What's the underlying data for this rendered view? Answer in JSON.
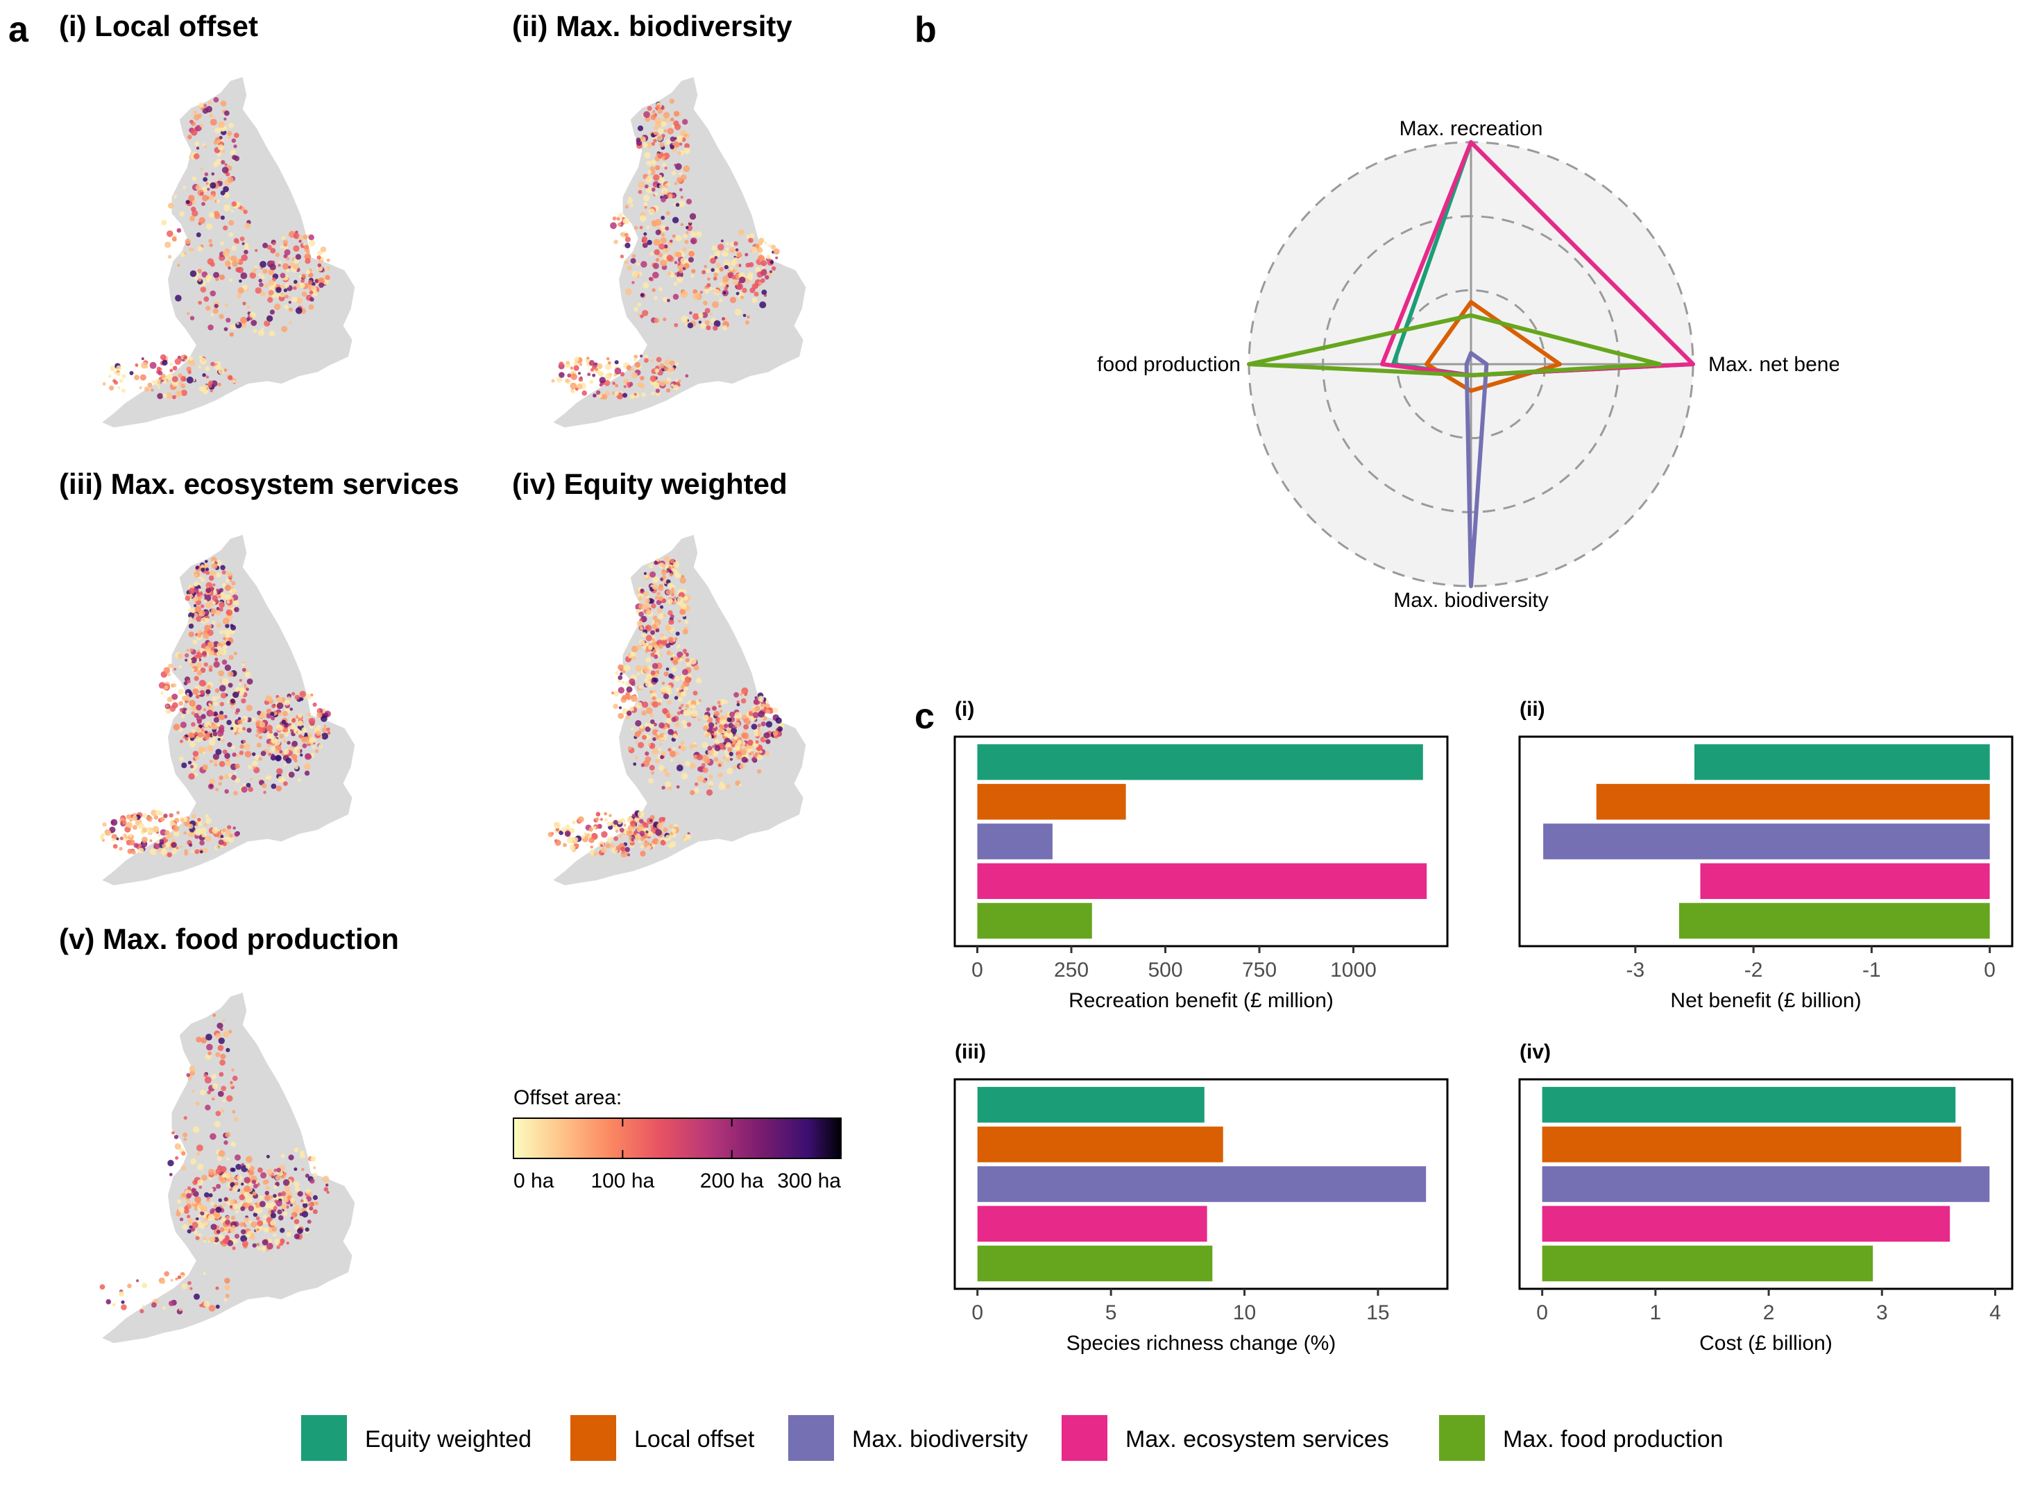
{
  "panel_letters": {
    "a": "a",
    "b": "b",
    "c": "c"
  },
  "maps": {
    "titles": [
      "(i) Local offset",
      "(ii) Max. biodiversity",
      "(iii) Max. ecosystem services",
      "(iv) Equity weighted",
      "(v) Max. food production"
    ],
    "colorbar": {
      "title": "Offset area:",
      "ticks": [
        "0 ha",
        "100 ha",
        "200 ha",
        "300 ha"
      ],
      "range": [
        0,
        300
      ]
    }
  },
  "colors": {
    "Equity weighted": "#1b9e77",
    "Local offset": "#d95f02",
    "Max. biodiversity": "#7570b3",
    "Max. ecosystem services": "#e7298a",
    "Max. food production": "#66a61e",
    "map_base": "#d9d9d9",
    "radar_bg": "#f2f2f2"
  },
  "chart_data": [
    {
      "type": "radar",
      "axes": [
        "Max. recreation",
        "Max. net benefit",
        "Max. biodiversity",
        "Max. food production"
      ],
      "series": [
        {
          "name": "Equity weighted",
          "values": [
            1.0,
            1.0,
            0.05,
            0.35
          ]
        },
        {
          "name": "Local offset",
          "values": [
            0.28,
            0.4,
            0.12,
            0.2
          ]
        },
        {
          "name": "Max. biodiversity",
          "values": [
            0.05,
            0.07,
            1.0,
            0.02
          ]
        },
        {
          "name": "Max. ecosystem services",
          "values": [
            1.0,
            1.0,
            0.05,
            0.4
          ]
        },
        {
          "name": "Max. food production",
          "values": [
            0.22,
            0.85,
            0.05,
            1.0
          ]
        }
      ],
      "rlim": [
        0,
        1
      ],
      "grid": "dashed circles"
    },
    {
      "type": "bar",
      "subtitle": "(i)",
      "orientation": "horizontal",
      "categories": [
        "Equity weighted",
        "Local offset",
        "Max. biodiversity",
        "Max. ecosystem services",
        "Max. food production"
      ],
      "values": [
        1185,
        395,
        200,
        1195,
        305
      ],
      "xlabel": "Recreation benefit (£ million)",
      "xlim": [
        -60,
        1250
      ],
      "xticks": [
        0,
        250,
        500,
        750,
        1000
      ]
    },
    {
      "type": "bar",
      "subtitle": "(ii)",
      "orientation": "horizontal",
      "categories": [
        "Equity weighted",
        "Local offset",
        "Max. biodiversity",
        "Max. ecosystem services",
        "Max. food production"
      ],
      "values": [
        -2.5,
        -3.33,
        -3.78,
        -2.45,
        -2.63
      ],
      "xlabel": "Net benefit (£ billion)",
      "xlim": [
        -3.98,
        0.19
      ],
      "xticks": [
        -3,
        -2,
        -1,
        0
      ]
    },
    {
      "type": "bar",
      "subtitle": "(iii)",
      "orientation": "horizontal",
      "categories": [
        "Equity weighted",
        "Local offset",
        "Max. biodiversity",
        "Max. ecosystem services",
        "Max. food production"
      ],
      "values": [
        8.5,
        9.2,
        16.8,
        8.6,
        8.8
      ],
      "xlabel": "Species richness change (%)",
      "xlim": [
        -0.85,
        17.6
      ],
      "xticks": [
        0,
        5,
        10,
        15
      ]
    },
    {
      "type": "bar",
      "subtitle": "(iv)",
      "orientation": "horizontal",
      "categories": [
        "Equity weighted",
        "Local offset",
        "Max. biodiversity",
        "Max. ecosystem services",
        "Max. food production"
      ],
      "values": [
        3.65,
        3.7,
        3.95,
        3.6,
        2.92
      ],
      "xlabel": "Cost (£ billion)",
      "xlim": [
        -0.2,
        4.15
      ],
      "xticks": [
        0,
        1,
        2,
        3,
        4
      ]
    }
  ],
  "legend": [
    "Equity weighted",
    "Local offset",
    "Max. biodiversity",
    "Max. ecosystem services",
    "Max. food production"
  ]
}
